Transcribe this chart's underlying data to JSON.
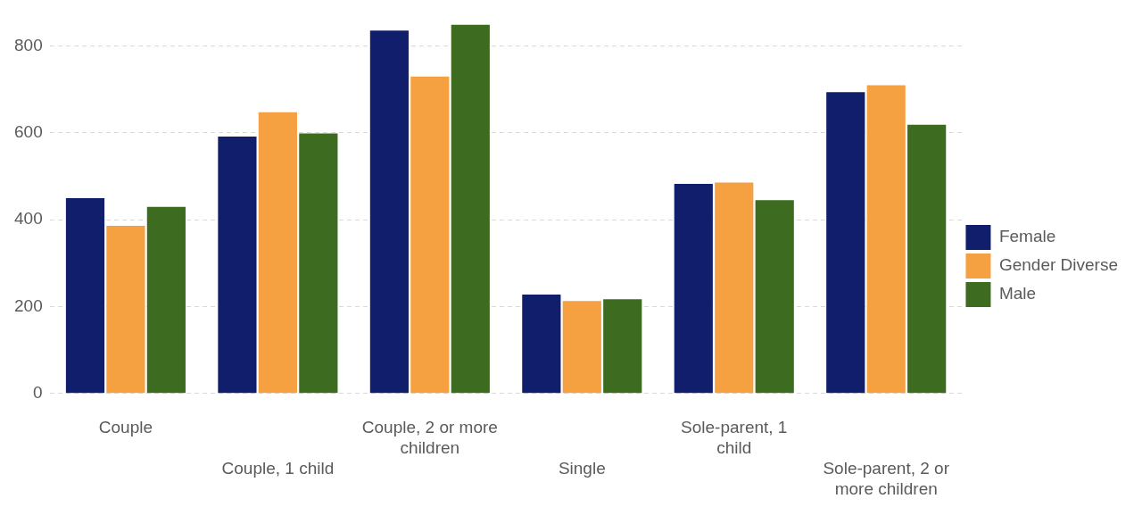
{
  "chart_data": {
    "type": "bar",
    "categories": [
      "Couple",
      "Couple, 1 child",
      "Couple, 2 or more children",
      "Single",
      "Sole-parent, 1 child",
      "Sole-parent, 2 or more children"
    ],
    "series": [
      {
        "name": "Female",
        "color": "#111e6c",
        "values": [
          450,
          592,
          836,
          228,
          483,
          694
        ]
      },
      {
        "name": "Gender Diverse",
        "color": "#f5a142",
        "values": [
          386,
          648,
          730,
          213,
          486,
          710
        ]
      },
      {
        "name": "Male",
        "color": "#3d6b1f",
        "values": [
          430,
          599,
          850,
          217,
          445,
          619
        ]
      }
    ],
    "ylim": [
      0,
      850
    ],
    "yticks": [
      0,
      200,
      400,
      600,
      800
    ],
    "grid": "y",
    "legend": "right"
  }
}
